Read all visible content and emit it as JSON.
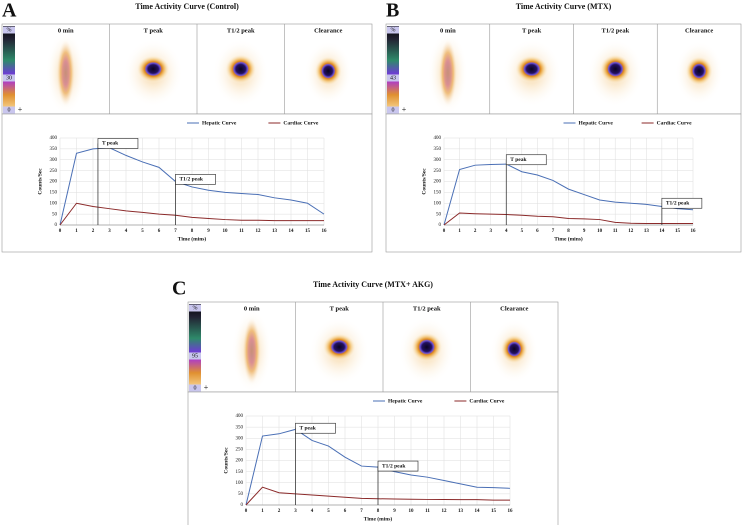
{
  "chart_data": [
    {
      "type": "line",
      "panel_label": "A",
      "title": "Time Activity Curve (Control)",
      "image_labels": [
        "0 min",
        "T peak",
        "T1/2 peak",
        "Clearance"
      ],
      "colorbar_labels": [
        "%",
        "30",
        "0"
      ],
      "xlabel": "Time (mins)",
      "ylabel": "Counts/Sec",
      "x": [
        0,
        1,
        2,
        3,
        4,
        5,
        6,
        7,
        8,
        9,
        10,
        11,
        12,
        13,
        14,
        15,
        16
      ],
      "xlim": [
        0,
        16
      ],
      "xticks": [
        0,
        1,
        2,
        3,
        4,
        5,
        6,
        7,
        8,
        9,
        10,
        11,
        12,
        13,
        14,
        15,
        16
      ],
      "ylim": [
        0,
        400
      ],
      "yticks": [
        0,
        50,
        100,
        150,
        200,
        250,
        300,
        350,
        400
      ],
      "grid": true,
      "series": [
        {
          "name": "Hepatic Curve",
          "color": "#4a6fb5",
          "values": [
            0,
            330,
            350,
            355,
            320,
            290,
            265,
            200,
            175,
            160,
            150,
            145,
            140,
            125,
            115,
            100,
            50
          ]
        },
        {
          "name": "Cardiac Curve",
          "color": "#8b2a2a",
          "values": [
            0,
            100,
            85,
            75,
            65,
            58,
            50,
            45,
            35,
            30,
            25,
            22,
            22,
            20,
            20,
            20,
            20
          ]
        }
      ],
      "annotations": [
        {
          "text": "T peak",
          "x": 2.3,
          "y": 375
        },
        {
          "text": "T1/2 peak",
          "x": 7,
          "y": 210
        }
      ]
    },
    {
      "type": "line",
      "panel_label": "B",
      "title": "Time Activity Curve (MTX)",
      "image_labels": [
        "0 min",
        "T peak",
        "T1/2 peak",
        "Clearance"
      ],
      "colorbar_labels": [
        "%",
        "43",
        "0"
      ],
      "xlabel": "Time (mins)",
      "ylabel": "Counts/Sec",
      "x": [
        0,
        1,
        2,
        3,
        4,
        5,
        6,
        7,
        8,
        9,
        10,
        11,
        12,
        13,
        14,
        15,
        16
      ],
      "xlim": [
        0,
        16
      ],
      "xticks": [
        0,
        1,
        2,
        3,
        4,
        5,
        6,
        7,
        8,
        9,
        10,
        11,
        12,
        13,
        14,
        15,
        16
      ],
      "ylim": [
        0,
        400
      ],
      "yticks": [
        0,
        50,
        100,
        150,
        200,
        250,
        300,
        350,
        400
      ],
      "grid": true,
      "series": [
        {
          "name": "Hepatic Curve",
          "color": "#4a6fb5",
          "values": [
            0,
            255,
            275,
            278,
            280,
            245,
            230,
            205,
            165,
            140,
            115,
            105,
            100,
            95,
            85,
            75,
            70
          ]
        },
        {
          "name": "Cardiac Curve",
          "color": "#8b2a2a",
          "values": [
            0,
            55,
            52,
            50,
            48,
            45,
            40,
            38,
            30,
            28,
            25,
            12,
            8,
            7,
            7,
            7,
            7
          ]
        }
      ],
      "annotations": [
        {
          "text": "T peak",
          "x": 4,
          "y": 300
        },
        {
          "text": "T1/2 peak",
          "x": 14,
          "y": 100
        }
      ]
    },
    {
      "type": "line",
      "panel_label": "C",
      "title": "Time Activity Curve (MTX+ AKG)",
      "image_labels": [
        "0 min",
        "T peak",
        "T1/2 peak",
        "Clearance"
      ],
      "colorbar_labels": [
        "%",
        "95",
        "0"
      ],
      "xlabel": "Time (mins)",
      "ylabel": "Counts/Sec",
      "x": [
        0,
        1,
        2,
        3,
        4,
        5,
        6,
        7,
        8,
        9,
        10,
        11,
        12,
        13,
        14,
        15,
        16
      ],
      "xlim": [
        0,
        16
      ],
      "xticks": [
        0,
        1,
        2,
        3,
        4,
        5,
        6,
        7,
        8,
        9,
        10,
        11,
        12,
        13,
        14,
        15,
        16
      ],
      "ylim": [
        0,
        400
      ],
      "yticks": [
        0,
        50,
        100,
        150,
        200,
        250,
        300,
        350,
        400
      ],
      "grid": true,
      "series": [
        {
          "name": "Hepatic Curve",
          "color": "#4a6fb5",
          "values": [
            0,
            310,
            320,
            340,
            290,
            265,
            215,
            175,
            170,
            150,
            135,
            125,
            110,
            95,
            80,
            78,
            75
          ]
        },
        {
          "name": "Cardiac Curve",
          "color": "#8b2a2a",
          "values": [
            0,
            80,
            55,
            50,
            45,
            40,
            35,
            30,
            28,
            27,
            26,
            25,
            25,
            24,
            24,
            22,
            22
          ]
        }
      ],
      "annotations": [
        {
          "text": "T peak",
          "x": 3,
          "y": 345
        },
        {
          "text": "T1/2 peak",
          "x": 8,
          "y": 175
        }
      ]
    }
  ]
}
